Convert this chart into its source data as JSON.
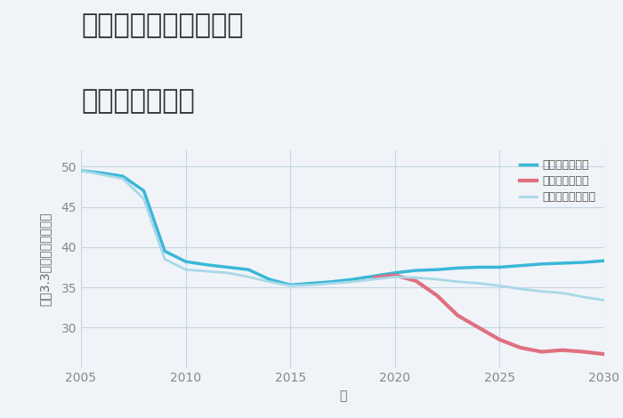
{
  "title_line1": "奈良県奈良市高樋町の",
  "title_line2": "土地の価格推移",
  "xlabel": "年",
  "ylabel": "坪（3.3㎡）単価（万円）",
  "background_color": "#f0f4f8",
  "plot_bg_color": "#f0f4f8",
  "ylim": [
    25,
    52
  ],
  "xlim": [
    2005,
    2030
  ],
  "yticks": [
    30,
    35,
    40,
    45,
    50
  ],
  "xticks": [
    2005,
    2010,
    2015,
    2020,
    2025,
    2030
  ],
  "good_scenario": {
    "x": [
      2005,
      2006,
      2007,
      2008,
      2009,
      2010,
      2011,
      2012,
      2013,
      2014,
      2015,
      2016,
      2017,
      2018,
      2019,
      2020,
      2021,
      2022,
      2023,
      2024,
      2025,
      2026,
      2027,
      2028,
      2029,
      2030
    ],
    "y": [
      49.5,
      49.2,
      48.8,
      47.0,
      39.5,
      38.2,
      37.8,
      37.5,
      37.2,
      36.0,
      35.3,
      35.5,
      35.7,
      36.0,
      36.4,
      36.8,
      37.1,
      37.2,
      37.4,
      37.5,
      37.5,
      37.7,
      37.9,
      38.0,
      38.1,
      38.3
    ],
    "color": "#3ab7d8",
    "linewidth": 2.5,
    "label": "グッドシナリオ"
  },
  "bad_scenario": {
    "x": [
      2019,
      2020,
      2021,
      2022,
      2023,
      2024,
      2025,
      2026,
      2027,
      2028,
      2029,
      2030
    ],
    "y": [
      36.2,
      36.5,
      35.8,
      34.0,
      31.5,
      30.0,
      28.5,
      27.5,
      27.0,
      27.2,
      27.0,
      26.7
    ],
    "color": "#e07080",
    "linewidth": 3.0,
    "label": "バッドシナリオ"
  },
  "normal_scenario": {
    "x": [
      2005,
      2006,
      2007,
      2008,
      2009,
      2010,
      2011,
      2012,
      2013,
      2014,
      2015,
      2016,
      2017,
      2018,
      2019,
      2020,
      2021,
      2022,
      2023,
      2024,
      2025,
      2026,
      2027,
      2028,
      2029,
      2030
    ],
    "y": [
      49.5,
      49.0,
      48.5,
      46.0,
      38.5,
      37.2,
      37.0,
      36.8,
      36.3,
      35.7,
      35.2,
      35.3,
      35.5,
      35.7,
      36.0,
      36.3,
      36.2,
      36.0,
      35.7,
      35.5,
      35.2,
      34.8,
      34.5,
      34.3,
      33.8,
      33.4
    ],
    "color": "#a8d8e8",
    "linewidth": 2.0,
    "label": "ノーマルシナリオ"
  },
  "legend_fontsize": 9,
  "title_fontsize": 22,
  "axis_label_fontsize": 10,
  "tick_fontsize": 10
}
